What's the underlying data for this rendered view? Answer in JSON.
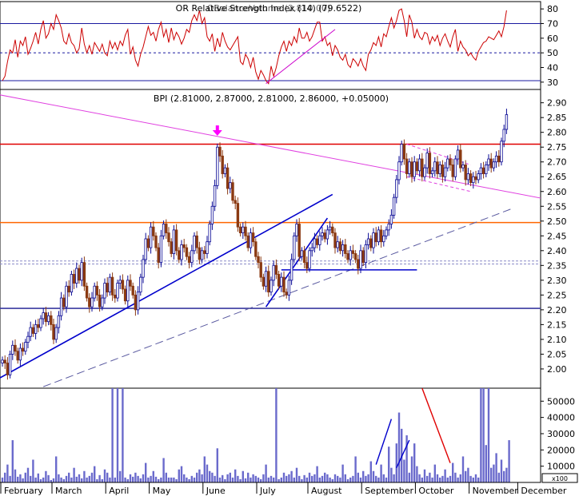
{
  "chart_data": [
    {
      "type": "line",
      "panel": "rsi",
      "title": "OR Relative Strength Index (14) (79.6522)",
      "title_overlap_text": "OBalanceVolume (2,810.00)",
      "ylim": [
        25,
        85
      ],
      "yticks": [
        30,
        40,
        50,
        60,
        70,
        80
      ],
      "reference_lines": [
        {
          "value": 70,
          "style": "solid",
          "color": "#1a1aa0"
        },
        {
          "value": 50,
          "style": "dashed",
          "color": "#1a1aa0"
        },
        {
          "value": 31,
          "style": "solid",
          "color": "#1a1aa0"
        }
      ],
      "series": [
        {
          "color": "#cc0000",
          "values": [
            31,
            34,
            44,
            52,
            50,
            59,
            47,
            58,
            55,
            61,
            49,
            53,
            58,
            64,
            56,
            66,
            72,
            60,
            63,
            70,
            66,
            76,
            72,
            67,
            58,
            56,
            63,
            57,
            55,
            50,
            53,
            67,
            56,
            50,
            55,
            49,
            57,
            54,
            51,
            56,
            50,
            48,
            58,
            53,
            57,
            52,
            58,
            55,
            62,
            66,
            49,
            54,
            45,
            41,
            49,
            54,
            61,
            68,
            62,
            64,
            58,
            66,
            71,
            61,
            66,
            57,
            67,
            59,
            64,
            61,
            56,
            60,
            66,
            64,
            72,
            76,
            72,
            79,
            70,
            74,
            61,
            58,
            63,
            51,
            60,
            54,
            64,
            58,
            54,
            52,
            55,
            58,
            61,
            44,
            42,
            49,
            46,
            40,
            47,
            37,
            32,
            38,
            35,
            31,
            29,
            41,
            34,
            40,
            48,
            54,
            58,
            51,
            58,
            55,
            61,
            57,
            67,
            60,
            60,
            64,
            58,
            61,
            66,
            71,
            71,
            58,
            61,
            55,
            57,
            48,
            55,
            52,
            47,
            45,
            49,
            42,
            40,
            46,
            44,
            41,
            46,
            41,
            38,
            49,
            52,
            57,
            55,
            61,
            54,
            63,
            61,
            68,
            74,
            67,
            72,
            79,
            80,
            72,
            61,
            76,
            71,
            60,
            66,
            61,
            59,
            64,
            63,
            56,
            61,
            58,
            62,
            55,
            60,
            63,
            58,
            54,
            61,
            66,
            51,
            58,
            54,
            52,
            48,
            50,
            47,
            45,
            51,
            54,
            57,
            58,
            61,
            60,
            59,
            62,
            65,
            61,
            68,
            79
          ]
        }
      ],
      "trendlines": [
        {
          "x": [
            103,
            130
          ],
          "y": [
            29,
            66
          ],
          "color": "#cc00cc"
        }
      ]
    },
    {
      "type": "candlestick",
      "panel": "price",
      "title": "BPI (2.81000, 2.87000, 2.81000, 2.86000, +0.05000)",
      "ylim": [
        1.935,
        2.945
      ],
      "yticks": [
        "2.00",
        "2.05",
        "2.10",
        "2.15",
        "2.20",
        "2.25",
        "2.30",
        "2.35",
        "2.40",
        "2.45",
        "2.50",
        "2.55",
        "2.60",
        "2.65",
        "2.70",
        "2.75",
        "2.80",
        "2.85",
        "2.90"
      ],
      "close": [
        2.03,
        2.02,
        1.98,
        2.05,
        2.08,
        2.06,
        2.03,
        2.07,
        2.06,
        2.09,
        2.11,
        2.14,
        2.12,
        2.15,
        2.14,
        2.17,
        2.19,
        2.16,
        2.18,
        2.15,
        2.1,
        2.14,
        2.18,
        2.24,
        2.21,
        2.28,
        2.26,
        2.32,
        2.29,
        2.34,
        2.3,
        2.36,
        2.28,
        2.24,
        2.21,
        2.24,
        2.28,
        2.25,
        2.21,
        2.24,
        2.29,
        2.26,
        2.31,
        2.25,
        2.24,
        2.29,
        2.3,
        2.27,
        2.23,
        2.3,
        2.28,
        2.25,
        2.2,
        2.26,
        2.31,
        2.37,
        2.44,
        2.41,
        2.48,
        2.45,
        2.41,
        2.36,
        2.45,
        2.49,
        2.46,
        2.43,
        2.39,
        2.47,
        2.4,
        2.37,
        2.42,
        2.41,
        2.38,
        2.36,
        2.4,
        2.45,
        2.41,
        2.37,
        2.4,
        2.39,
        2.43,
        2.49,
        2.55,
        2.62,
        2.75,
        2.72,
        2.66,
        2.68,
        2.61,
        2.63,
        2.57,
        2.56,
        2.48,
        2.46,
        2.48,
        2.45,
        2.41,
        2.46,
        2.43,
        2.38,
        2.36,
        2.31,
        2.28,
        2.33,
        2.26,
        2.3,
        2.35,
        2.32,
        2.28,
        2.31,
        2.26,
        2.25,
        2.3,
        2.37,
        2.45,
        2.49,
        2.38,
        2.4,
        2.36,
        2.34,
        2.4,
        2.41,
        2.44,
        2.42,
        2.45,
        2.46,
        2.44,
        2.47,
        2.48,
        2.46,
        2.41,
        2.43,
        2.4,
        2.42,
        2.39,
        2.37,
        2.4,
        2.39,
        2.37,
        2.34,
        2.4,
        2.36,
        2.42,
        2.44,
        2.41,
        2.46,
        2.43,
        2.47,
        2.43,
        2.45,
        2.47,
        2.49,
        2.52,
        2.58,
        2.64,
        2.7,
        2.76,
        2.71,
        2.66,
        2.7,
        2.65,
        2.7,
        2.67,
        2.71,
        2.65,
        2.68,
        2.73,
        2.66,
        2.67,
        2.7,
        2.66,
        2.69,
        2.65,
        2.68,
        2.71,
        2.69,
        2.65,
        2.71,
        2.74,
        2.68,
        2.69,
        2.64,
        2.66,
        2.63,
        2.65,
        2.64,
        2.66,
        2.68,
        2.66,
        2.69,
        2.71,
        2.68,
        2.7,
        2.72,
        2.7,
        2.77,
        2.81,
        2.86
      ],
      "horizontal_lines": [
        {
          "value": 2.76,
          "color": "#e00000",
          "style": "solid"
        },
        {
          "value": 2.495,
          "color": "#ff6600",
          "style": "solid"
        },
        {
          "value": 2.365,
          "color": "#8c8cc8",
          "style": "dashed"
        },
        {
          "value": 2.355,
          "color": "#8c8cc8",
          "style": "dashed"
        },
        {
          "value": 2.205,
          "color": "#3a3aa0",
          "style": "solid"
        }
      ],
      "trendlines": [
        {
          "x": [
            -3,
            215
          ],
          "y": [
            2.93,
            2.57
          ],
          "color": "#e040e0",
          "style": "solid"
        },
        {
          "x": [
            -3,
            129
          ],
          "y": [
            1.96,
            2.59
          ],
          "color": "#0000cc",
          "style": "solid"
        },
        {
          "x": [
            16,
            200
          ],
          "y": [
            1.94,
            2.545
          ],
          "color": "#5a5aa0",
          "style": "dashed"
        },
        {
          "x": [
            103,
            127
          ],
          "y": [
            2.21,
            2.51
          ],
          "color": "#0000cc",
          "style": "solid"
        },
        {
          "x": [
            109,
            139
          ],
          "y": [
            2.335,
            2.335
          ],
          "color": "#0000cc",
          "style": "solid"
        },
        {
          "x": [
            139,
            162
          ],
          "y": [
            2.335,
            2.335
          ],
          "color": "#0000cc",
          "style": "solid"
        },
        {
          "x": [
            158,
            183
          ],
          "y": [
            2.76,
            2.69
          ],
          "color": "#e040e0",
          "style": "dashed"
        },
        {
          "x": [
            158,
            183
          ],
          "y": [
            2.65,
            2.6
          ],
          "color": "#e040e0",
          "style": "dashed"
        }
      ],
      "annotations": [
        {
          "type": "down-arrow",
          "x": 84,
          "color": "#ff00ff"
        }
      ]
    },
    {
      "type": "bar",
      "panel": "volume",
      "ylim": [
        0,
        58000
      ],
      "yticks": [
        10000,
        20000,
        30000,
        40000,
        50000
      ],
      "ytick_labels": [
        "10000",
        "20000",
        "30000",
        "40000",
        "50000"
      ],
      "values": [
        3000,
        6000,
        11000,
        4000,
        26000,
        8000,
        3500,
        5000,
        2500,
        6000,
        9000,
        4000,
        14000,
        3000,
        5500,
        2000,
        3000,
        7000,
        4500,
        1500,
        2500,
        16000,
        5000,
        3000,
        2000,
        4000,
        6000,
        3000,
        9000,
        3500,
        5000,
        2500,
        7000,
        3000,
        4000,
        6000,
        10000,
        2000,
        4500,
        2000,
        8000,
        6000,
        3000,
        58000,
        3000,
        58000,
        7000,
        58000,
        3000,
        2000,
        5000,
        3500,
        6000,
        4000,
        2500,
        5000,
        12000,
        3000,
        4000,
        7000,
        3500,
        2000,
        3000,
        15000,
        6000,
        3000,
        3000,
        3000,
        2000,
        8000,
        10000,
        5000,
        3000,
        2000,
        4000,
        3000,
        6000,
        8000,
        5000,
        16000,
        11000,
        7000,
        6000,
        4000,
        21000,
        3000,
        4500,
        2000,
        5000,
        6000,
        3000,
        8000,
        4000,
        2000,
        7000,
        2500,
        6000,
        3000,
        5000,
        4000,
        3000,
        2000,
        5000,
        11000,
        3000,
        4000,
        3000,
        58000,
        2000,
        3000,
        6000,
        4000,
        5000,
        7000,
        3000,
        9000,
        4000,
        2000,
        4500,
        3000,
        6000,
        4000,
        5000,
        10000,
        3000,
        4000,
        6000,
        5000,
        3000,
        2000,
        5000,
        4000,
        3000,
        11000,
        5000,
        2000,
        3000,
        4000,
        16000,
        6000,
        3000,
        7000,
        4000,
        5000,
        13000,
        7000,
        4000,
        3000,
        11000,
        5000,
        3000,
        22000,
        9000,
        5000,
        24000,
        43000,
        33000,
        14000,
        29000,
        6000,
        16000,
        24000,
        10000,
        5000,
        3000,
        8000,
        4000,
        6000,
        3000,
        11000,
        5000,
        3000,
        4000,
        8000,
        3000,
        4000,
        12000,
        6000,
        3000,
        5000,
        16000,
        7000,
        9000,
        4000,
        3000,
        5000,
        3000,
        58000,
        58000,
        23000,
        58000,
        9000,
        11000,
        18000,
        6000,
        14000,
        7000,
        9000,
        26000
      ],
      "color": "#6a6acc",
      "trendlines": [
        {
          "x": [
            146,
            152
          ],
          "y": [
            11000,
            39000
          ],
          "color": "#0000cc"
        },
        {
          "x": [
            154,
            159
          ],
          "y": [
            9000,
            26000
          ],
          "color": "#0000cc"
        },
        {
          "x": [
            164,
            175
          ],
          "y": [
            58000,
            12000
          ],
          "color": "#e00000"
        }
      ]
    }
  ],
  "x_axis": {
    "months": [
      {
        "label": "February",
        "x": 0
      },
      {
        "label": "March",
        "x": 20
      },
      {
        "label": "April",
        "x": 41
      },
      {
        "label": "May",
        "x": 58
      },
      {
        "label": "June",
        "x": 79
      },
      {
        "label": "July",
        "x": 100
      },
      {
        "label": "August",
        "x": 120
      },
      {
        "label": "September",
        "x": 141
      },
      {
        "label": "October",
        "x": 162
      },
      {
        "label": "November",
        "x": 183
      },
      {
        "label": "December",
        "x": 202
      }
    ],
    "scale_tag": "x100"
  },
  "colors": {
    "up": "#0a0a96",
    "down": "#8b3a12",
    "axis": "#000000"
  }
}
